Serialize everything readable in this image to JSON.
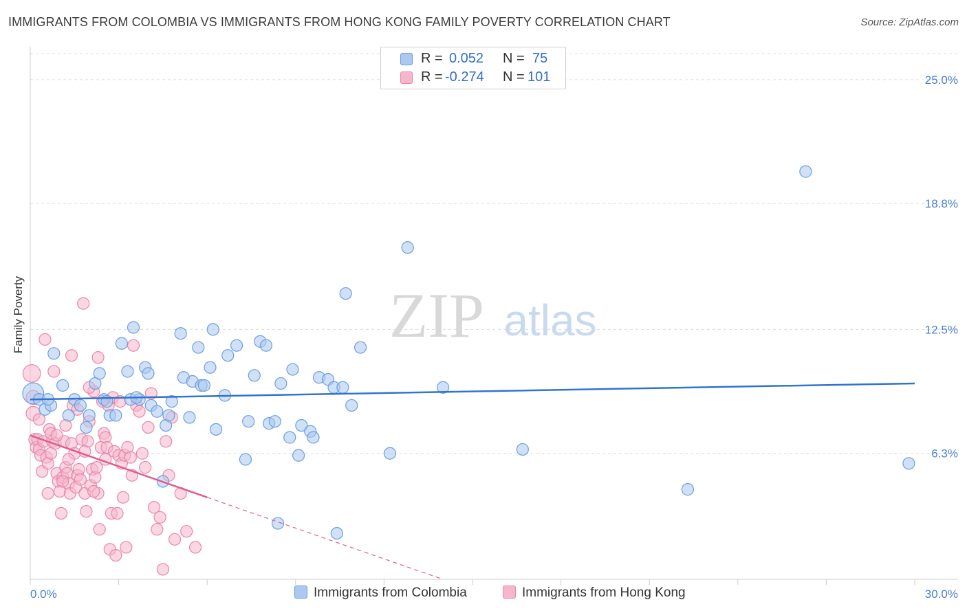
{
  "title": "IMMIGRANTS FROM COLOMBIA VS IMMIGRANTS FROM HONG KONG FAMILY POVERTY CORRELATION CHART",
  "source": "Source: ZipAtlas.com",
  "watermark": {
    "zip": "ZIP",
    "atlas": "atlas"
  },
  "legend": {
    "rows": [
      {
        "r_label": "R =",
        "r_value": "0.052",
        "n_label": "N =",
        "n_value": "75"
      },
      {
        "r_label": "R =",
        "r_value": "-0.274",
        "n_label": "N =",
        "n_value": "101"
      }
    ]
  },
  "bottom_legend": {
    "series1": "Immigrants from Colombia",
    "series2": "Immigrants from Hong Kong"
  },
  "colors": {
    "blue_fill": "#aac8f0",
    "blue_stroke": "#6a9ee0",
    "blue_line": "#2f74d0",
    "pink_fill": "#f6b6cb",
    "pink_stroke": "#ea86a8",
    "pink_line": "#e05c8c",
    "tick_text": "#4a7fd0",
    "grid": "#dcdcdc"
  },
  "chart_data": {
    "type": "scatter",
    "title": "IMMIGRANTS FROM COLOMBIA VS IMMIGRANTS FROM HONG KONG FAMILY POVERTY CORRELATION CHART",
    "xlabel": "",
    "ylabel": "Family Poverty",
    "xlim": [
      0,
      30
    ],
    "ylim": [
      0,
      26.3
    ],
    "x_tick_labels": {
      "left": "0.0%",
      "right": "30.0%"
    },
    "y_ticks": [
      {
        "value": 6.3,
        "label": "6.3%"
      },
      {
        "value": 12.5,
        "label": "12.5%"
      },
      {
        "value": 18.8,
        "label": "18.8%"
      },
      {
        "value": 25.0,
        "label": "25.0%"
      }
    ],
    "series": [
      {
        "name": "Immigrants from Colombia",
        "color": "blue",
        "R": 0.052,
        "N": 75,
        "trend": {
          "x0": 0,
          "y0": 9.0,
          "x1": 30,
          "y1": 9.8
        },
        "points": [
          [
            0.1,
            9.3,
            1.8
          ],
          [
            0.3,
            9.0,
            1
          ],
          [
            0.5,
            8.5,
            1
          ],
          [
            0.7,
            8.7,
            1
          ],
          [
            0.8,
            11.3,
            1
          ],
          [
            1.1,
            9.7,
            1
          ],
          [
            1.3,
            8.2,
            1
          ],
          [
            1.5,
            9.0,
            1
          ],
          [
            1.7,
            8.7,
            1
          ],
          [
            1.9,
            7.6,
            1
          ],
          [
            2.0,
            8.2,
            1
          ],
          [
            2.2,
            9.8,
            1
          ],
          [
            2.35,
            10.3,
            1
          ],
          [
            2.5,
            9.0,
            1
          ],
          [
            2.7,
            8.2,
            1
          ],
          [
            2.9,
            8.2,
            1
          ],
          [
            3.1,
            11.8,
            1
          ],
          [
            3.3,
            10.4,
            1
          ],
          [
            3.5,
            12.6,
            1
          ],
          [
            3.7,
            9.0,
            1
          ],
          [
            3.9,
            10.6,
            1
          ],
          [
            4.0,
            10.3,
            1
          ],
          [
            4.1,
            8.7,
            1
          ],
          [
            4.3,
            8.4,
            1
          ],
          [
            4.5,
            4.9,
            1
          ],
          [
            4.6,
            7.7,
            1
          ],
          [
            4.7,
            8.2,
            1
          ],
          [
            4.8,
            8.9,
            1
          ],
          [
            5.1,
            12.3,
            1
          ],
          [
            5.2,
            10.1,
            1
          ],
          [
            5.4,
            8.1,
            1
          ],
          [
            5.5,
            9.9,
            1
          ],
          [
            5.7,
            11.6,
            1
          ],
          [
            5.8,
            9.7,
            1
          ],
          [
            6.1,
            10.6,
            1
          ],
          [
            6.2,
            12.5,
            1
          ],
          [
            6.3,
            7.5,
            1
          ],
          [
            6.6,
            9.2,
            1
          ],
          [
            6.7,
            11.2,
            1
          ],
          [
            7.0,
            11.7,
            1
          ],
          [
            7.3,
            6.0,
            1
          ],
          [
            7.4,
            7.9,
            1
          ],
          [
            7.6,
            10.2,
            1
          ],
          [
            7.8,
            11.9,
            1
          ],
          [
            8.0,
            11.7,
            1
          ],
          [
            8.1,
            7.8,
            1
          ],
          [
            8.3,
            7.9,
            1
          ],
          [
            8.4,
            2.8,
            1
          ],
          [
            8.5,
            9.8,
            1
          ],
          [
            8.8,
            7.1,
            1
          ],
          [
            8.9,
            10.5,
            1
          ],
          [
            9.1,
            6.2,
            1
          ],
          [
            9.2,
            7.7,
            1
          ],
          [
            9.5,
            7.4,
            1
          ],
          [
            9.6,
            7.1,
            1
          ],
          [
            9.8,
            10.1,
            1
          ],
          [
            10.1,
            10.0,
            1
          ],
          [
            10.3,
            9.6,
            1
          ],
          [
            10.4,
            2.3,
            1
          ],
          [
            10.6,
            9.6,
            1
          ],
          [
            10.7,
            14.3,
            1
          ],
          [
            10.9,
            8.7,
            1
          ],
          [
            11.2,
            11.6,
            1
          ],
          [
            12.2,
            6.3,
            1
          ],
          [
            12.8,
            16.6,
            1
          ],
          [
            14.0,
            9.6,
            1
          ],
          [
            16.7,
            6.5,
            1
          ],
          [
            22.3,
            4.5,
            1
          ],
          [
            26.3,
            20.4,
            1
          ],
          [
            29.8,
            5.8,
            1
          ],
          [
            0.6,
            9.0,
            1
          ],
          [
            2.6,
            8.9,
            1
          ],
          [
            3.4,
            9.0,
            1
          ],
          [
            5.9,
            9.7,
            1
          ],
          [
            3.6,
            9.1,
            1
          ]
        ]
      },
      {
        "name": "Immigrants from Hong Kong",
        "color": "pink",
        "R": -0.274,
        "N": 101,
        "trend": {
          "x0": 0,
          "y0": 7.2,
          "x1": 6.0,
          "y1": 4.1,
          "dash_x1": 14.0,
          "dash_y1": 0.0
        },
        "points": [
          [
            0.05,
            10.3,
            1.5
          ],
          [
            0.1,
            8.3,
            1.2
          ],
          [
            0.1,
            9.1,
            1.2
          ],
          [
            0.15,
            7.0,
            1
          ],
          [
            0.2,
            6.6,
            1
          ],
          [
            0.25,
            7.0,
            1
          ],
          [
            0.3,
            6.5,
            1
          ],
          [
            0.35,
            6.2,
            1
          ],
          [
            0.4,
            5.4,
            1
          ],
          [
            0.45,
            6.9,
            1
          ],
          [
            0.5,
            12.0,
            1
          ],
          [
            0.55,
            6.1,
            1
          ],
          [
            0.6,
            5.8,
            1
          ],
          [
            0.65,
            7.5,
            1
          ],
          [
            0.7,
            6.3,
            1
          ],
          [
            0.75,
            6.9,
            1
          ],
          [
            0.8,
            10.4,
            1
          ],
          [
            0.85,
            6.8,
            1
          ],
          [
            0.9,
            5.3,
            1
          ],
          [
            0.95,
            4.9,
            1
          ],
          [
            1.0,
            4.4,
            1
          ],
          [
            1.05,
            3.3,
            1
          ],
          [
            1.1,
            5.1,
            1
          ],
          [
            1.15,
            6.9,
            1
          ],
          [
            1.2,
            5.6,
            1
          ],
          [
            1.25,
            5.3,
            1
          ],
          [
            1.3,
            4.8,
            1
          ],
          [
            1.35,
            4.3,
            1
          ],
          [
            1.4,
            6.8,
            1
          ],
          [
            1.45,
            8.7,
            1
          ],
          [
            1.5,
            6.3,
            1
          ],
          [
            1.55,
            4.6,
            1
          ],
          [
            1.6,
            5.2,
            1
          ],
          [
            1.65,
            5.5,
            1
          ],
          [
            1.7,
            5.0,
            1
          ],
          [
            1.75,
            7.0,
            1
          ],
          [
            1.8,
            13.8,
            1
          ],
          [
            1.85,
            4.3,
            1
          ],
          [
            1.9,
            3.4,
            1
          ],
          [
            1.95,
            6.9,
            1
          ],
          [
            2.0,
            7.9,
            1
          ],
          [
            2.05,
            4.7,
            1
          ],
          [
            2.1,
            5.5,
            1
          ],
          [
            2.15,
            9.4,
            1
          ],
          [
            2.2,
            5.1,
            1
          ],
          [
            2.25,
            5.6,
            1
          ],
          [
            2.3,
            4.3,
            1
          ],
          [
            2.35,
            2.5,
            1
          ],
          [
            2.4,
            6.6,
            1
          ],
          [
            2.45,
            8.9,
            1
          ],
          [
            2.5,
            7.3,
            1
          ],
          [
            2.55,
            7.1,
            1
          ],
          [
            2.6,
            6.6,
            1
          ],
          [
            2.65,
            8.7,
            1
          ],
          [
            2.7,
            1.5,
            1
          ],
          [
            2.75,
            3.3,
            1
          ],
          [
            2.8,
            9.1,
            1
          ],
          [
            2.85,
            6.4,
            1
          ],
          [
            2.9,
            1.2,
            1
          ],
          [
            2.95,
            3.3,
            1
          ],
          [
            3.0,
            6.2,
            1
          ],
          [
            3.05,
            8.9,
            1
          ],
          [
            3.1,
            5.8,
            1
          ],
          [
            3.15,
            4.1,
            1
          ],
          [
            3.2,
            6.2,
            1
          ],
          [
            3.3,
            6.6,
            1
          ],
          [
            3.4,
            6.1,
            1
          ],
          [
            3.5,
            11.7,
            1
          ],
          [
            3.6,
            8.7,
            1
          ],
          [
            3.7,
            8.4,
            1
          ],
          [
            3.8,
            6.3,
            1
          ],
          [
            3.9,
            5.6,
            1
          ],
          [
            4.0,
            7.6,
            1
          ],
          [
            4.1,
            9.3,
            1
          ],
          [
            4.2,
            3.6,
            1
          ],
          [
            4.3,
            2.5,
            1
          ],
          [
            4.4,
            3.1,
            1
          ],
          [
            4.5,
            0.5,
            1
          ],
          [
            4.6,
            6.9,
            1
          ],
          [
            4.7,
            5.2,
            1
          ],
          [
            4.8,
            8.1,
            1
          ],
          [
            4.9,
            2.0,
            1
          ],
          [
            5.1,
            4.3,
            1
          ],
          [
            5.3,
            2.4,
            1
          ],
          [
            5.6,
            1.6,
            1
          ],
          [
            0.3,
            8.0,
            1
          ],
          [
            0.7,
            7.3,
            1
          ],
          [
            1.2,
            7.7,
            1
          ],
          [
            1.6,
            8.5,
            1
          ],
          [
            2.0,
            9.6,
            1
          ],
          [
            2.3,
            11.1,
            1
          ],
          [
            1.1,
            4.9,
            1
          ],
          [
            1.3,
            6.0,
            1
          ],
          [
            0.6,
            4.3,
            1
          ],
          [
            0.9,
            7.2,
            1
          ],
          [
            3.25,
            1.6,
            1
          ],
          [
            2.15,
            4.4,
            1
          ],
          [
            1.85,
            6.4,
            1
          ],
          [
            2.55,
            6.0,
            1
          ],
          [
            3.45,
            5.2,
            1
          ],
          [
            1.4,
            11.2,
            1
          ]
        ]
      }
    ]
  }
}
